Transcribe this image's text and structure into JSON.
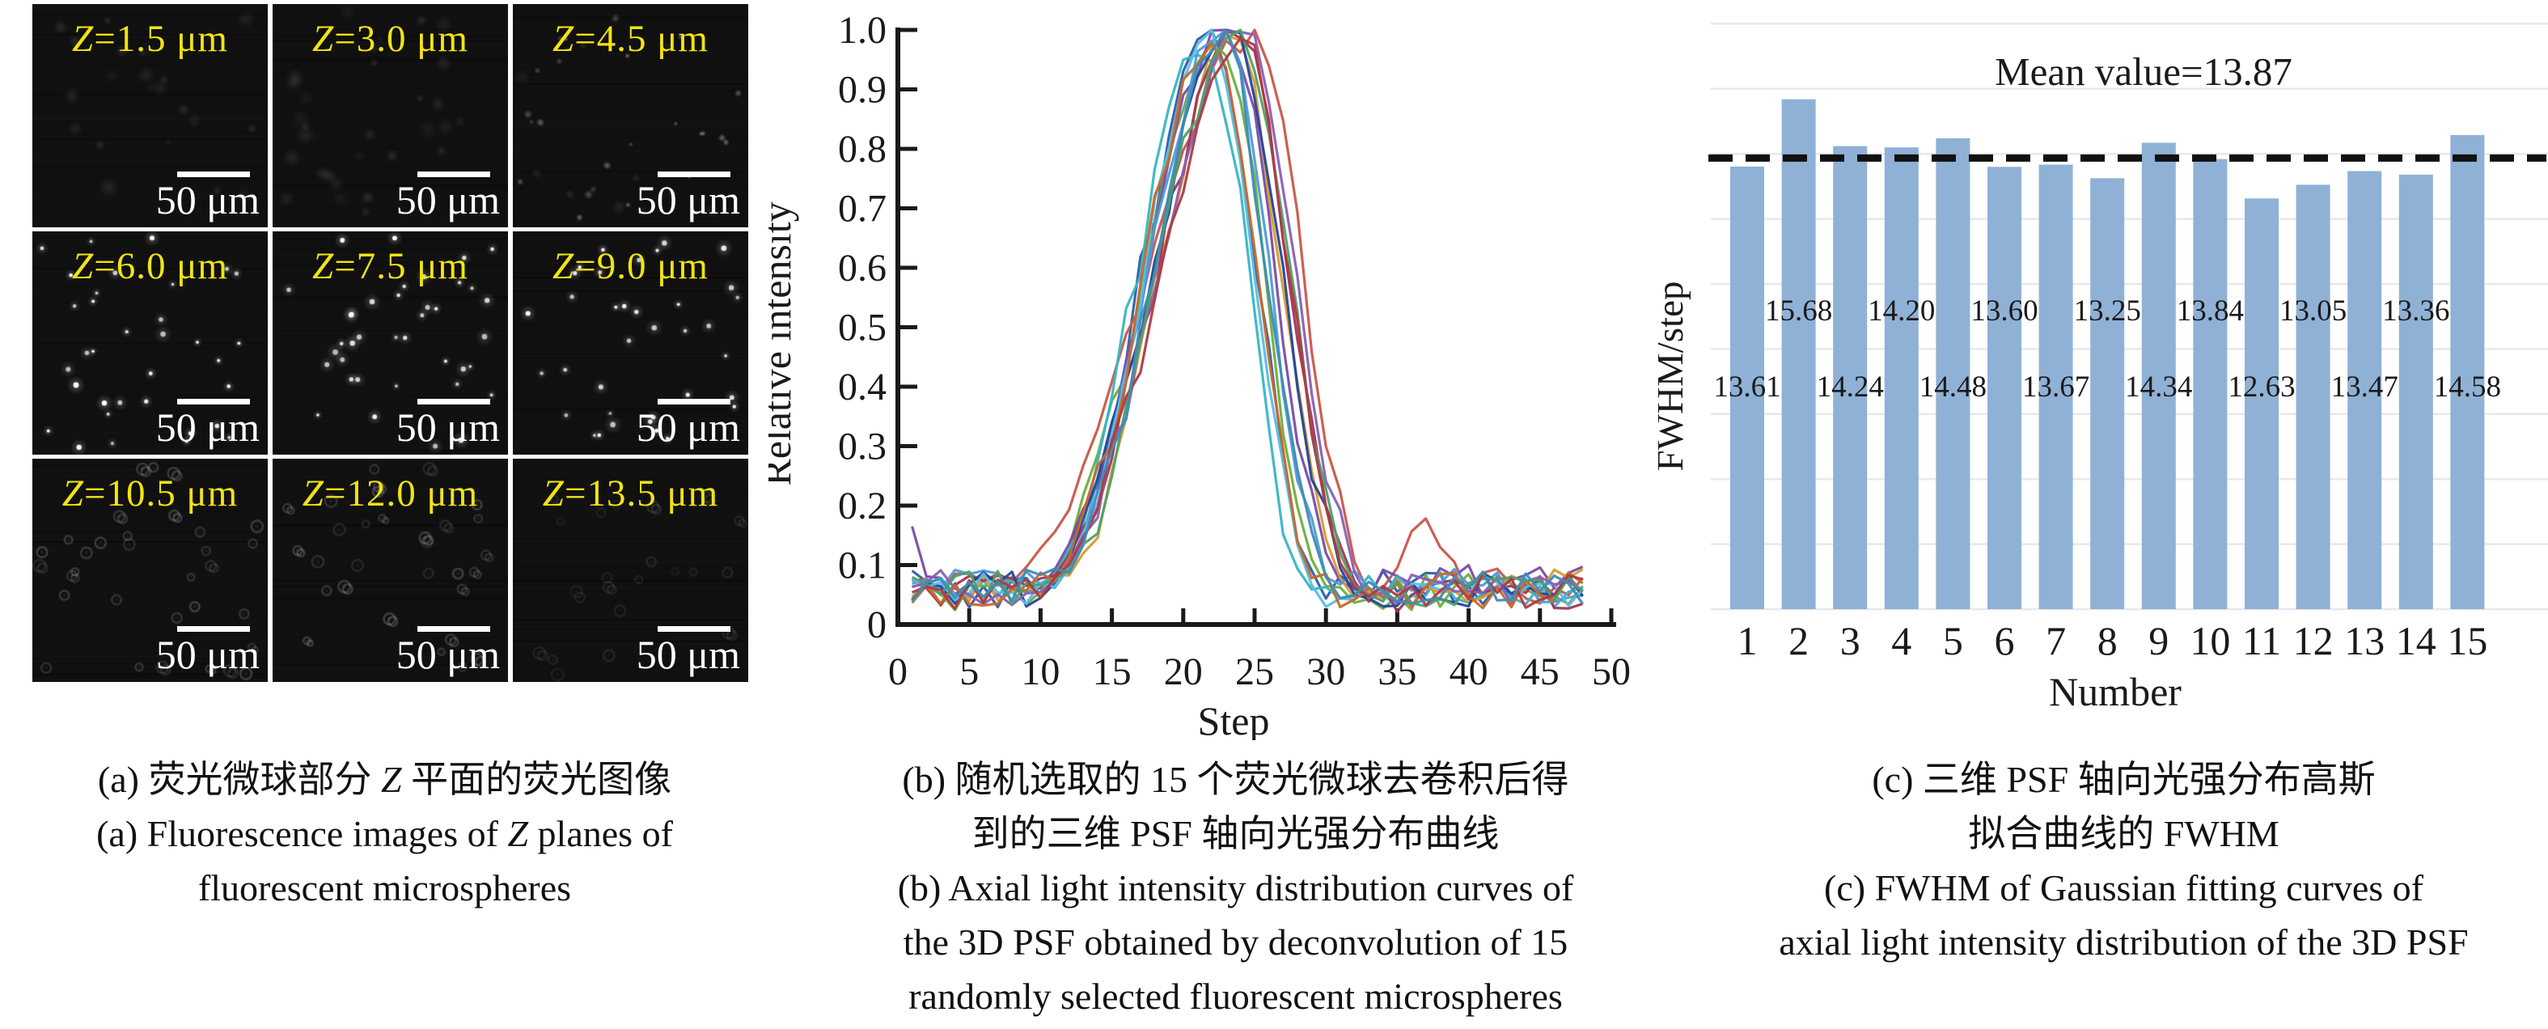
{
  "figure": {
    "panel_a": {
      "tiles": [
        {
          "label": "Z=1.5 μm",
          "scale_bar": "50 μm",
          "style": "faint",
          "dots": 24,
          "seed": 101
        },
        {
          "label": "Z=3.0 μm",
          "scale_bar": "50 μm",
          "style": "faint",
          "dots": 30,
          "seed": 202
        },
        {
          "label": "Z=4.5 μm",
          "scale_bar": "50 μm",
          "style": "semi",
          "dots": 34,
          "seed": 303
        },
        {
          "label": "Z=6.0 μm",
          "scale_bar": "50 μm",
          "style": "bright",
          "dots": 34,
          "seed": 404
        },
        {
          "label": "Z=7.5 μm",
          "scale_bar": "50 μm",
          "style": "bright",
          "dots": 38,
          "seed": 505
        },
        {
          "label": "Z=9.0 μm",
          "scale_bar": "50 μm",
          "style": "bright",
          "dots": 36,
          "seed": 606
        },
        {
          "label": "Z=10.5 μm",
          "scale_bar": "50 μm",
          "style": "ring",
          "dots": 32,
          "seed": 707
        },
        {
          "label": "Z=12.0 μm",
          "scale_bar": "50 μm",
          "style": "ring",
          "dots": 30,
          "seed": 808
        },
        {
          "label": "Z=13.5 μm",
          "scale_bar": "50 μm",
          "style": "ring_dim",
          "dots": 22,
          "seed": 909
        }
      ],
      "label_color": "#F2E312",
      "scale_color": "#FFFFFF",
      "caption": [
        "(a) 荧光微球部分 Z 平面的荧光图像",
        "(a) Fluorescence images of Z planes of",
        "fluorescent microspheres"
      ]
    },
    "panel_b": {
      "caption": [
        "(b) 随机选取的 15 个荧光微球去卷积后得",
        "到的三维 PSF 轴向光强分布曲线",
        "(b) Axial light intensity distribution curves of",
        "the 3D PSF obtained by deconvolution of 15",
        "randomly selected fluorescent microspheres"
      ]
    },
    "panel_c": {
      "caption": [
        "(c) 三维 PSF 轴向光强分布高斯",
        "拟合曲线的 FWHM",
        "(c) FWHM of Gaussian fitting curves of",
        "axial light intensity distribution of the 3D PSF"
      ]
    }
  },
  "chart_data": [
    {
      "type": "line",
      "title": "",
      "xlabel": "Step",
      "ylabel": "Relative intensity",
      "xlim": [
        0,
        50
      ],
      "ylim": [
        0,
        1.0
      ],
      "xticks": [
        0,
        5,
        10,
        15,
        20,
        25,
        30,
        35,
        40,
        45,
        50
      ],
      "ytick_labels": [
        "0",
        "0.1",
        "0.2",
        "0.3",
        "0.4",
        "0.5",
        "0.6",
        "0.7",
        "0.8",
        "0.9",
        "1.0"
      ],
      "grid": false,
      "legend": "none",
      "n_series": 15,
      "shape_note": "15 Gaussian-like axial PSF intensity profiles, baseline ~0.05-0.1 for steps 1-9, rising from ~step 10, jagged plateau 0.95-1.0 over steps 20-27, falling to baseline by step ~37, noisy tail to step 48; one broad red curve rises early and peaks late (~26) with a small bump near step 37",
      "series": [
        {
          "color": "#2C5FA8",
          "c": 22.0,
          "wl": 4.9,
          "wr": 3.2,
          "b": 0.06,
          "peak": 0.995,
          "seed": 11
        },
        {
          "color": "#C9564A",
          "c": 25.0,
          "wl": 7.4,
          "wr": 3.3,
          "b": 0.065,
          "peak": 1.0,
          "seed": 22,
          "bump": [
            37,
            1.7,
            0.13
          ]
        },
        {
          "color": "#6FAE3E",
          "c": 22.5,
          "wl": 5.2,
          "wr": 3.1,
          "b": 0.055,
          "peak": 0.99,
          "seed": 33
        },
        {
          "color": "#7A4BA6",
          "c": 23.0,
          "wl": 5.5,
          "wr": 3.4,
          "b": 0.07,
          "peak": 1.0,
          "seed": 44,
          "s1": 0.165
        },
        {
          "color": "#38B5C4",
          "c": 21.5,
          "wl": 4.7,
          "wr": 3.0,
          "b": 0.058,
          "peak": 0.985,
          "seed": 55
        },
        {
          "color": "#D79C33",
          "c": 23.5,
          "wl": 5.1,
          "wr": 3.3,
          "b": 0.062,
          "peak": 1.0,
          "seed": 66
        },
        {
          "color": "#A23557",
          "c": 24.0,
          "wl": 5.8,
          "wr": 3.5,
          "b": 0.052,
          "peak": 0.99,
          "seed": 77
        },
        {
          "color": "#4E9BD8",
          "c": 22.8,
          "wl": 5.0,
          "wr": 3.2,
          "b": 0.066,
          "peak": 1.0,
          "seed": 88
        },
        {
          "color": "#24459A",
          "c": 23.2,
          "wl": 5.3,
          "wr": 3.6,
          "b": 0.06,
          "peak": 0.995,
          "seed": 99
        },
        {
          "color": "#58BEE4",
          "c": 21.8,
          "wl": 4.6,
          "wr": 3.1,
          "b": 0.055,
          "peak": 0.99,
          "seed": 110
        },
        {
          "color": "#8A5FB5",
          "c": 24.5,
          "wl": 5.9,
          "wr": 3.4,
          "b": 0.063,
          "peak": 1.0,
          "seed": 121
        },
        {
          "color": "#C8682B",
          "c": 22.2,
          "wl": 4.9,
          "wr": 3.0,
          "b": 0.058,
          "peak": 0.985,
          "seed": 132
        },
        {
          "color": "#4FA06A",
          "c": 23.8,
          "wl": 5.4,
          "wr": 3.5,
          "b": 0.061,
          "peak": 1.0,
          "seed": 143
        },
        {
          "color": "#AF3A41",
          "c": 24.2,
          "wl": 5.7,
          "wr": 3.2,
          "b": 0.057,
          "peak": 0.995,
          "seed": 154
        },
        {
          "color": "#3E8CB5",
          "c": 22.6,
          "wl": 4.8,
          "wr": 3.3,
          "b": 0.064,
          "peak": 0.99,
          "seed": 165
        }
      ]
    },
    {
      "type": "bar",
      "title": "Mean value=13.87",
      "xlabel": "Number",
      "ylabel": "FWHM/step",
      "categories": [
        "1",
        "2",
        "3",
        "4",
        "5",
        "6",
        "7",
        "8",
        "9",
        "10",
        "11",
        "12",
        "13",
        "14",
        "15"
      ],
      "values": [
        13.61,
        15.68,
        14.24,
        14.2,
        14.48,
        13.6,
        13.67,
        13.25,
        14.34,
        13.84,
        12.63,
        13.05,
        13.47,
        13.36,
        14.58
      ],
      "value_labels": [
        "13.61",
        "15.68",
        "14.24",
        "14.20",
        "14.48",
        "13.60",
        "13.67",
        "13.25",
        "14.34",
        "13.84",
        "12.63",
        "13.05",
        "13.47",
        "13.36",
        "14.58"
      ],
      "mean": 13.87,
      "mean_line": "dashed",
      "ylim": [
        0,
        18
      ],
      "grid_step": 2,
      "grid": true,
      "bar_color": "#8FB1D6",
      "grid_color": "#E8E8E8",
      "mean_line_color": "#111111"
    }
  ]
}
